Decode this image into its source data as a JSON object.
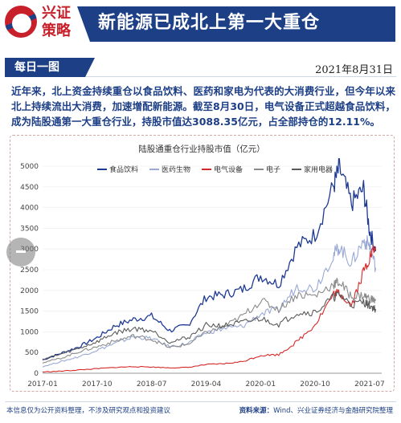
{
  "brand": {
    "line1": "兴证",
    "line2": "策略"
  },
  "title": "新能源已成北上第一大重仓",
  "subtitle_tag": "每日一图",
  "date": "2021年8月31日",
  "summary": "近年来，北上资金持续重仓以食品饮料、医药和家电为代表的大消费行业，但今年以来北上持续流出大消费，加速增配新能源。截至8月30日，电气设备正式超越食品饮料，成为陆股通第一大重仓行业，持股市值达3088.35亿元，占全部持仓的12.11%。",
  "footer": {
    "disclaimer": "本信息仅为公开资料整理，不涉及研究观点和投资建议",
    "source_label": "资料来源：",
    "source": "Wind、兴业证券经济与金融研究院整理"
  },
  "colors": {
    "brand_red": "#c8202b",
    "brand_blue": "#1d3f86",
    "food": "#1f3a93",
    "medical": "#9aa9d6",
    "electric": "#d62828",
    "electronics": "#8a8a8a",
    "appliance": "#5a5a5a"
  },
  "chart_data": {
    "type": "line",
    "title": "陆股通重仓行业持股市值（亿元）",
    "xlabel": "",
    "ylabel": "",
    "ylim": [
      0,
      5000
    ],
    "yticks": [
      0,
      500,
      1000,
      1500,
      2000,
      2500,
      3000,
      3500,
      4000,
      4500,
      5000
    ],
    "xticks": [
      "2017-01",
      "2017-10",
      "2018-07",
      "2019-04",
      "2020-01",
      "2020-10",
      "2021-07"
    ],
    "legend_position": "top",
    "x": [
      "2017-01",
      "2017-04",
      "2017-07",
      "2017-10",
      "2018-01",
      "2018-04",
      "2018-07",
      "2018-10",
      "2019-01",
      "2019-04",
      "2019-07",
      "2019-10",
      "2020-01",
      "2020-04",
      "2020-07",
      "2020-10",
      "2021-01",
      "2021-02",
      "2021-04",
      "2021-06",
      "2021-07",
      "2021-08"
    ],
    "series": [
      {
        "name": "食品饮料",
        "values": [
          320,
          480,
          640,
          860,
          1150,
          1300,
          1380,
          1030,
          1160,
          1840,
          1900,
          2020,
          2350,
          2150,
          3050,
          3350,
          4500,
          4950,
          4100,
          4450,
          3450,
          2950
        ]
      },
      {
        "name": "医药生物",
        "values": [
          160,
          280,
          400,
          560,
          720,
          880,
          840,
          640,
          720,
          980,
          1080,
          1130,
          1430,
          1530,
          2100,
          2050,
          2850,
          3050,
          2650,
          3200,
          3100,
          2550
        ]
      },
      {
        "name": "电气设备",
        "values": [
          30,
          50,
          80,
          110,
          140,
          160,
          150,
          130,
          140,
          210,
          230,
          280,
          430,
          450,
          760,
          1180,
          1900,
          1950,
          1650,
          2450,
          2800,
          3050
        ]
      },
      {
        "name": "电子",
        "values": [
          260,
          360,
          520,
          640,
          780,
          900,
          820,
          620,
          700,
          980,
          1120,
          1380,
          1750,
          1550,
          1900,
          1870,
          2150,
          2200,
          1850,
          1880,
          1800,
          1750
        ]
      },
      {
        "name": "家用电器",
        "values": [
          340,
          460,
          600,
          760,
          980,
          1080,
          1030,
          760,
          860,
          1160,
          1150,
          1220,
          1320,
          1180,
          1460,
          1470,
          1830,
          1900,
          1650,
          1720,
          1630,
          1550
        ]
      }
    ]
  }
}
